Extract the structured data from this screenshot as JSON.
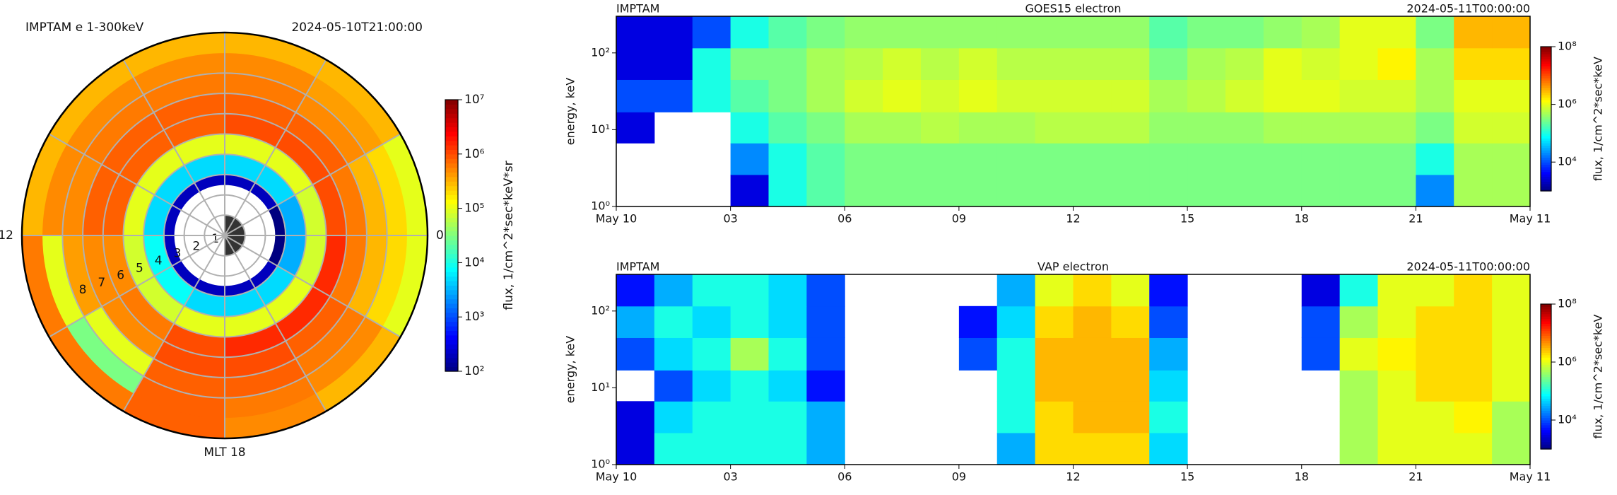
{
  "chart_data": [
    {
      "type": "polar_heatmap",
      "title": "IMPTAM e 1-300keV",
      "subtitle": "2024-05-10T21:00:00",
      "colorbar_label": "flux, 1/cm^2*sec*keV*sr",
      "colormap": "jet",
      "zscale": "log",
      "zlim": [
        100,
        10000000
      ],
      "zticks": [
        {
          "value": 100,
          "label": "10²"
        },
        {
          "value": 1000,
          "label": "10³"
        },
        {
          "value": 10000,
          "label": "10⁴"
        },
        {
          "value": 100000,
          "label": "10⁵"
        },
        {
          "value": 1000000,
          "label": "10⁶"
        },
        {
          "value": 10000000,
          "label": "10⁷"
        }
      ],
      "rlim": [
        0,
        10
      ],
      "rticks": [
        1,
        2,
        3,
        4,
        5,
        6,
        7,
        8
      ],
      "mlt_ticks": [
        12,
        0,
        {
          "value": 18,
          "label": "MLT 18"
        }
      ],
      "r_bins": [
        2.5,
        3,
        4,
        5,
        6,
        7,
        8,
        9,
        10
      ],
      "mlt_bins": [
        0,
        2,
        4,
        6,
        8,
        10,
        12,
        14,
        16,
        18,
        20,
        22,
        24
      ],
      "values": [
        [
          100,
          200,
          200,
          200,
          200,
          200,
          200,
          200,
          200,
          200,
          200,
          100
        ],
        [
          3000,
          5000,
          5000,
          5000,
          5000,
          5000,
          8000,
          8000,
          5000,
          5000,
          5000,
          3000
        ],
        [
          80000,
          100000,
          100000,
          100000,
          100000,
          100000,
          80000,
          80000,
          100000,
          100000,
          100000,
          80000
        ],
        [
          1000000,
          1000000,
          1000000,
          800000,
          800000,
          800000,
          500000,
          600000,
          1000000,
          1500000,
          1500000,
          1500000
        ],
        [
          600000,
          800000,
          800000,
          800000,
          800000,
          800000,
          500000,
          500000,
          1000000,
          1000000,
          800000,
          600000
        ],
        [
          300000,
          500000,
          600000,
          600000,
          600000,
          500000,
          400000,
          100000,
          800000,
          800000,
          600000,
          300000
        ],
        [
          200000,
          400000,
          500000,
          500000,
          500000,
          500000,
          100000,
          30000,
          800000,
          600000,
          500000,
          200000
        ],
        [
          100000,
          300000,
          300000,
          300000,
          300000,
          300000,
          600000,
          600000,
          800000,
          500000,
          300000,
          100000
        ]
      ]
    },
    {
      "type": "heatmap",
      "title_left": "IMPTAM",
      "title": "GOES15 electron",
      "title_right": "2024-05-11T00:00:00",
      "ylabel": "energy, keV",
      "colorbar_label": "flux, 1/cm^2*sec*keV",
      "colormap": "jet",
      "zscale": "log",
      "yscale": "log",
      "zlim": [
        1000,
        100000000
      ],
      "zticks": [
        {
          "value": 10000,
          "label": "10⁴"
        },
        {
          "value": 1000000,
          "label": "10⁶"
        },
        {
          "value": 100000000,
          "label": "10⁸"
        }
      ],
      "xlim": [
        0,
        24
      ],
      "ylim": [
        1,
        300
      ],
      "xticks": [
        {
          "value": 0,
          "label": "May 10"
        },
        {
          "value": 3,
          "label": "03"
        },
        {
          "value": 6,
          "label": "06"
        },
        {
          "value": 9,
          "label": "09"
        },
        12,
        15,
        18,
        21,
        {
          "value": 24,
          "label": "May 11"
        }
      ],
      "yticks": [
        {
          "value": 1,
          "label": "10⁰"
        },
        {
          "value": 10,
          "label": "10¹"
        },
        {
          "value": 100,
          "label": "10²"
        }
      ],
      "x_bins": [
        0,
        1,
        2,
        3,
        4,
        5,
        6,
        7,
        8,
        9,
        10,
        11,
        12,
        13,
        14,
        15,
        16,
        17,
        18,
        19,
        20,
        21,
        22,
        23,
        24
      ],
      "y_bins": [
        1,
        2.6,
        6.7,
        17,
        45,
        116,
        300
      ],
      "values": [
        [
          null,
          null,
          null,
          3000,
          100000,
          200000,
          300000,
          300000,
          300000,
          300000,
          300000,
          300000,
          300000,
          300000,
          300000,
          300000,
          300000,
          300000,
          300000,
          300000,
          300000,
          20000,
          500000,
          500000
        ],
        [
          null,
          null,
          null,
          20000,
          100000,
          200000,
          300000,
          300000,
          300000,
          300000,
          300000,
          300000,
          300000,
          300000,
          300000,
          300000,
          300000,
          300000,
          300000,
          300000,
          300000,
          100000,
          500000,
          500000
        ],
        [
          3000,
          null,
          null,
          100000,
          200000,
          300000,
          500000,
          500000,
          600000,
          500000,
          500000,
          600000,
          600000,
          600000,
          400000,
          400000,
          400000,
          500000,
          500000,
          500000,
          500000,
          300000,
          800000,
          800000
        ],
        [
          10000,
          10000,
          100000,
          200000,
          300000,
          500000,
          800000,
          1000000,
          800000,
          1000000,
          800000,
          800000,
          800000,
          800000,
          500000,
          600000,
          800000,
          1000000,
          1000000,
          800000,
          800000,
          500000,
          1000000,
          1000000
        ],
        [
          3000,
          3000,
          100000,
          300000,
          300000,
          500000,
          600000,
          800000,
          600000,
          800000,
          600000,
          600000,
          600000,
          600000,
          300000,
          500000,
          600000,
          1000000,
          800000,
          1000000,
          1500000,
          500000,
          2000000,
          2000000
        ],
        [
          3000,
          3000,
          10000,
          100000,
          200000,
          300000,
          400000,
          400000,
          400000,
          400000,
          400000,
          400000,
          400000,
          400000,
          200000,
          300000,
          300000,
          400000,
          500000,
          1000000,
          1000000,
          300000,
          3000000,
          3000000
        ]
      ]
    },
    {
      "type": "heatmap",
      "title_left": "IMPTAM",
      "title": "VAP electron",
      "title_right": "2024-05-11T00:00:00",
      "ylabel": "energy, keV",
      "colorbar_label": "flux, 1/cm^2*sec*keV",
      "colormap": "jet",
      "zscale": "log",
      "yscale": "log",
      "zlim": [
        1000,
        100000000
      ],
      "zticks": [
        {
          "value": 10000,
          "label": "10⁴"
        },
        {
          "value": 1000000,
          "label": "10⁶"
        },
        {
          "value": 100000000,
          "label": "10⁸"
        }
      ],
      "xlim": [
        0,
        24
      ],
      "ylim": [
        1,
        300
      ],
      "xticks": [
        {
          "value": 0,
          "label": "May 10"
        },
        {
          "value": 3,
          "label": "03"
        },
        {
          "value": 6,
          "label": "06"
        },
        {
          "value": 9,
          "label": "09"
        },
        12,
        15,
        18,
        21,
        {
          "value": 24,
          "label": "May 11"
        }
      ],
      "yticks": [
        {
          "value": 1,
          "label": "10⁰"
        },
        {
          "value": 10,
          "label": "10¹"
        },
        {
          "value": 100,
          "label": "10²"
        }
      ],
      "x_bins": [
        0,
        1,
        2,
        3,
        4,
        5,
        6,
        7,
        8,
        9,
        10,
        11,
        12,
        13,
        14,
        15,
        16,
        17,
        18,
        19,
        20,
        21,
        22,
        23,
        24
      ],
      "y_bins": [
        1,
        2.6,
        6.7,
        17,
        45,
        116,
        300
      ],
      "values": [
        [
          3000,
          100000,
          100000,
          100000,
          100000,
          30000,
          null,
          null,
          null,
          null,
          30000,
          2000000,
          2000000,
          2000000,
          50000,
          null,
          null,
          null,
          null,
          500000,
          1000000,
          1000000,
          1000000,
          500000
        ],
        [
          3000,
          50000,
          100000,
          100000,
          100000,
          30000,
          null,
          null,
          null,
          null,
          100000,
          2000000,
          3000000,
          3000000,
          100000,
          null,
          null,
          null,
          null,
          500000,
          1000000,
          1000000,
          1500000,
          500000
        ],
        [
          null,
          10000,
          50000,
          100000,
          50000,
          5000,
          null,
          null,
          null,
          null,
          100000,
          3000000,
          3000000,
          3000000,
          50000,
          null,
          null,
          null,
          null,
          500000,
          1000000,
          2000000,
          2000000,
          1000000
        ],
        [
          10000,
          50000,
          100000,
          500000,
          100000,
          10000,
          null,
          null,
          null,
          10000,
          100000,
          3000000,
          3000000,
          3000000,
          30000,
          null,
          null,
          null,
          10000,
          1000000,
          1500000,
          2000000,
          2000000,
          1000000
        ],
        [
          30000,
          100000,
          50000,
          100000,
          50000,
          10000,
          null,
          null,
          null,
          5000,
          50000,
          2000000,
          3000000,
          2000000,
          10000,
          null,
          null,
          null,
          10000,
          500000,
          1000000,
          2000000,
          2000000,
          1000000
        ],
        [
          5000,
          30000,
          100000,
          100000,
          50000,
          10000,
          null,
          null,
          null,
          null,
          30000,
          1000000,
          2000000,
          1000000,
          5000,
          null,
          null,
          null,
          3000,
          100000,
          1000000,
          1000000,
          2000000,
          1000000
        ]
      ]
    }
  ]
}
